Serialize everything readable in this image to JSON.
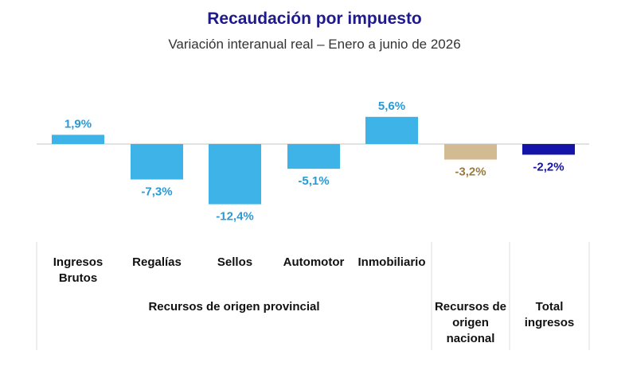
{
  "chart_data": {
    "type": "bar",
    "title": "Recaudación por impuesto",
    "subtitle": "Variación interanual real – Enero a junio de 2026",
    "categories": [
      "Ingresos Brutos",
      "Regalías",
      "Sellos",
      "Automotor",
      "Inmobiliario",
      "Recursos de origen nacional",
      "Total ingresos"
    ],
    "values": [
      1.9,
      -7.3,
      -12.4,
      -5.1,
      5.6,
      -3.2,
      -2.2
    ],
    "value_labels": [
      "1,9%",
      "-7,3%",
      "-12,4%",
      "-5,1%",
      "5,6%",
      "-3,2%",
      "-2,2%"
    ],
    "groups": [
      {
        "label": "Recursos de origen provincial",
        "categories": [
          "Ingresos Brutos",
          "Regalías",
          "Sellos",
          "Automotor",
          "Inmobiliario"
        ]
      },
      {
        "label": "Recursos de origen nacional",
        "categories": [
          "Recursos de origen nacional"
        ]
      },
      {
        "label": "Total ingresos",
        "categories": [
          "Total ingresos"
        ]
      }
    ],
    "colors": [
      "#3db3e8",
      "#3db3e8",
      "#3db3e8",
      "#3db3e8",
      "#3db3e8",
      "#d2bb92",
      "#1414a8"
    ],
    "label_colors": [
      "#2a9ad6",
      "#2a9ad6",
      "#2a9ad6",
      "#2a9ad6",
      "#2a9ad6",
      "#9c7a3c",
      "#1414a8"
    ],
    "xlabel": "",
    "ylabel": "",
    "grid": false,
    "legend": "none"
  }
}
